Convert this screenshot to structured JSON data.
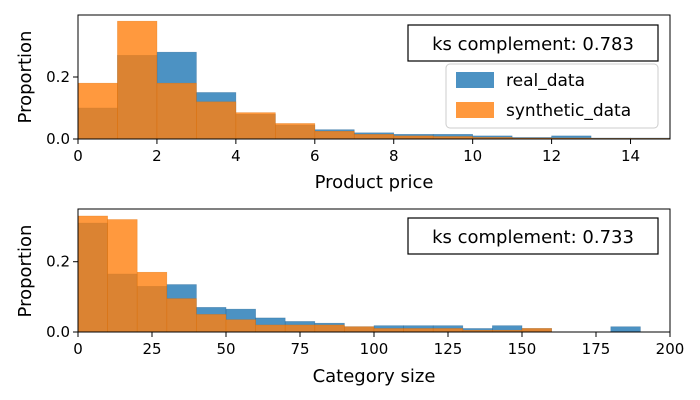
{
  "colors": {
    "real": "#1f77b4",
    "synthetic": "#ff7f0e",
    "real_edge": "#1f5f92",
    "synthetic_edge": "#e06d00"
  },
  "legend": {
    "real_label": "real_data",
    "synthetic_label": "synthetic_data",
    "placement": "right, below ks box (top panel)"
  },
  "chart_data": [
    {
      "type": "bar",
      "subtype": "histogram",
      "xlabel": "Product price",
      "ylabel": "Proportion",
      "xlim": [
        0,
        15
      ],
      "ylim": [
        0,
        0.4
      ],
      "xticks": [
        0,
        2,
        4,
        6,
        8,
        10,
        12,
        14
      ],
      "xtick_labels": [
        "0",
        "2",
        "4",
        "6",
        "8",
        "10",
        "12",
        "14"
      ],
      "yticks": [
        0.0,
        0.2
      ],
      "ytick_labels": [
        "0.0",
        "0.2"
      ],
      "annotation": "ks complement: 0.783",
      "bin_edges": [
        0,
        1,
        2,
        3,
        4,
        5,
        6,
        7,
        8,
        9,
        10,
        11,
        12,
        13,
        14,
        15
      ],
      "series": [
        {
          "name": "real_data",
          "values": [
            0.1,
            0.27,
            0.28,
            0.15,
            0.08,
            0.045,
            0.03,
            0.02,
            0.015,
            0.015,
            0.01,
            0.005,
            0.01,
            0.003,
            0.003
          ]
        },
        {
          "name": "synthetic_data",
          "values": [
            0.18,
            0.38,
            0.18,
            0.12,
            0.085,
            0.05,
            0.025,
            0.015,
            0.01,
            0.008,
            0.005,
            0.003,
            0.003,
            0.002,
            0.002
          ]
        }
      ]
    },
    {
      "type": "bar",
      "subtype": "histogram",
      "xlabel": "Category size",
      "ylabel": "Proportion",
      "xlim": [
        0,
        200
      ],
      "ylim": [
        0,
        0.35
      ],
      "xticks": [
        0,
        25,
        50,
        75,
        100,
        125,
        150,
        175,
        200
      ],
      "xtick_labels": [
        "0",
        "25",
        "50",
        "75",
        "100",
        "125",
        "150",
        "175",
        "200"
      ],
      "yticks": [
        0.0,
        0.2
      ],
      "ytick_labels": [
        "0.0",
        "0.2"
      ],
      "annotation": "ks complement: 0.733",
      "bin_edges": [
        0,
        10,
        20,
        30,
        40,
        50,
        60,
        70,
        80,
        90,
        100,
        110,
        120,
        130,
        140,
        150,
        160,
        170,
        180,
        190
      ],
      "series": [
        {
          "name": "real_data",
          "values": [
            0.31,
            0.165,
            0.13,
            0.135,
            0.07,
            0.065,
            0.04,
            0.03,
            0.025,
            0.015,
            0.018,
            0.018,
            0.018,
            0.01,
            0.018,
            0.01,
            0.0,
            0.0,
            0.015
          ]
        },
        {
          "name": "synthetic_data",
          "values": [
            0.33,
            0.32,
            0.17,
            0.095,
            0.05,
            0.035,
            0.02,
            0.02,
            0.02,
            0.015,
            0.01,
            0.01,
            0.01,
            0.005,
            0.005,
            0.01,
            0.0,
            0.0,
            0.0
          ]
        }
      ]
    }
  ]
}
